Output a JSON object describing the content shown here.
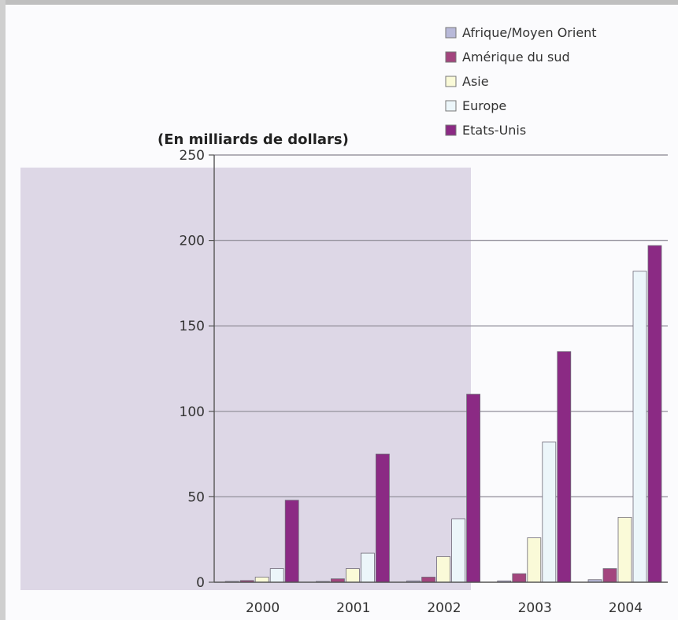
{
  "chart_data": {
    "type": "bar",
    "title": "",
    "ylabel": "(En milliards de dollars)",
    "xlabel": "",
    "categories": [
      "2000",
      "2001",
      "2002",
      "2003",
      "2004"
    ],
    "ylim": [
      0,
      250
    ],
    "yticks": [
      "0",
      "50",
      "100",
      "150",
      "200",
      "250"
    ],
    "grid": true,
    "legend_position": "top-right",
    "series": [
      {
        "name": "Afrique/Moyen Orient",
        "color": "#b8b9d9",
        "values": [
          0.5,
          0.3,
          0.8,
          0.8,
          1.5
        ]
      },
      {
        "name": "Amérique du sud",
        "color": "#a3457e",
        "values": [
          1,
          2,
          3,
          5,
          8
        ]
      },
      {
        "name": "Asie",
        "color": "#fafad8",
        "values": [
          3,
          8,
          15,
          26,
          38
        ]
      },
      {
        "name": "Europe",
        "color": "#ecf6fa",
        "values": [
          8,
          17,
          37,
          82,
          182
        ]
      },
      {
        "name": "Etats-Unis",
        "color": "#8b2a84",
        "values": [
          48,
          75,
          110,
          135,
          197
        ]
      }
    ]
  }
}
